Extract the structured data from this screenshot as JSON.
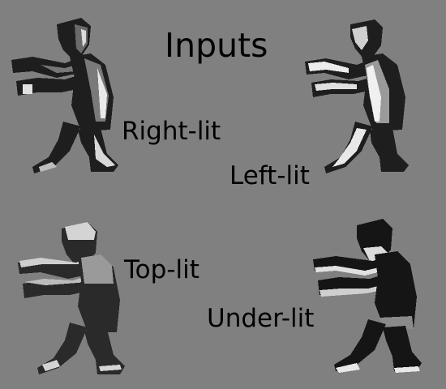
{
  "title": "Inputs",
  "figures": [
    {
      "label": "Right-lit",
      "icon": "zombie-sprite-right-lit-icon",
      "light": "#ffffff",
      "body": "#4a4a4a",
      "shadow": "#1a1a1a"
    },
    {
      "label": "Left-lit",
      "icon": "zombie-sprite-left-lit-icon",
      "light": "#ffffff",
      "body": "#5a5a5a",
      "shadow": "#1a1a1a"
    },
    {
      "label": "Top-lit",
      "icon": "zombie-sprite-top-lit-icon",
      "light": "#d8d8d8",
      "body": "#6a6a6a",
      "shadow": "#2a2a2a"
    },
    {
      "label": "Under-lit",
      "icon": "zombie-sprite-under-lit-icon",
      "light": "#e8e8e8",
      "body": "#3a3a3a",
      "shadow": "#0a0a0a"
    }
  ]
}
